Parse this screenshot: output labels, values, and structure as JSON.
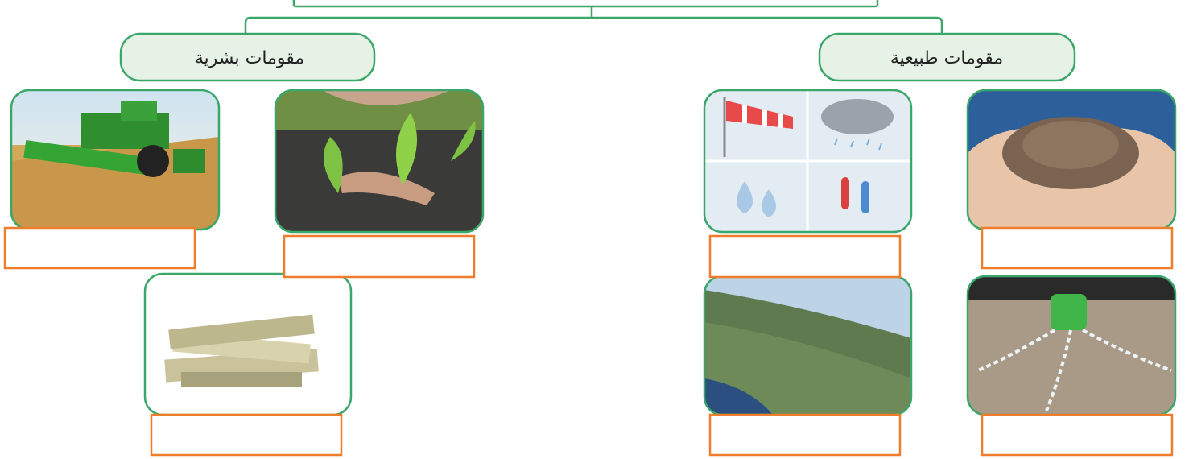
{
  "branches": [
    {
      "label": "مقومات بشرية"
    },
    {
      "label": "مقومات طبيعية"
    }
  ]
}
